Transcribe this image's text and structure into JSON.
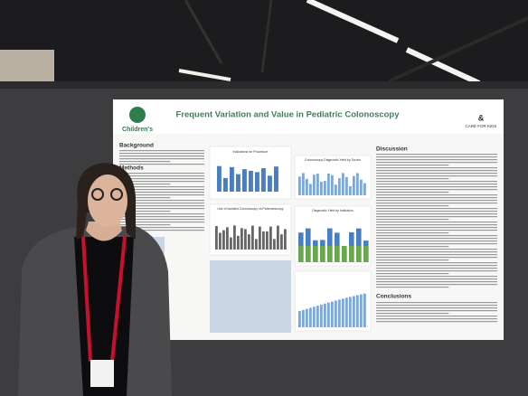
{
  "poster": {
    "title": "Frequent Variation and Value in Pediatric Colonoscopy",
    "logo_left": "Children's",
    "logo_right": "CARE FOR KIDS",
    "sections": {
      "background": "Background",
      "methods": "Methods",
      "discussion": "Discussion",
      "conclusions": "Conclusions"
    },
    "charts": [
      "Indications for Procedure",
      "Colonoscopy Diagnostic Yield by Doctor",
      "Use of Isolated Colonoscopy vs Panendoscopy",
      "Diagnostic Yield by Indication"
    ]
  }
}
